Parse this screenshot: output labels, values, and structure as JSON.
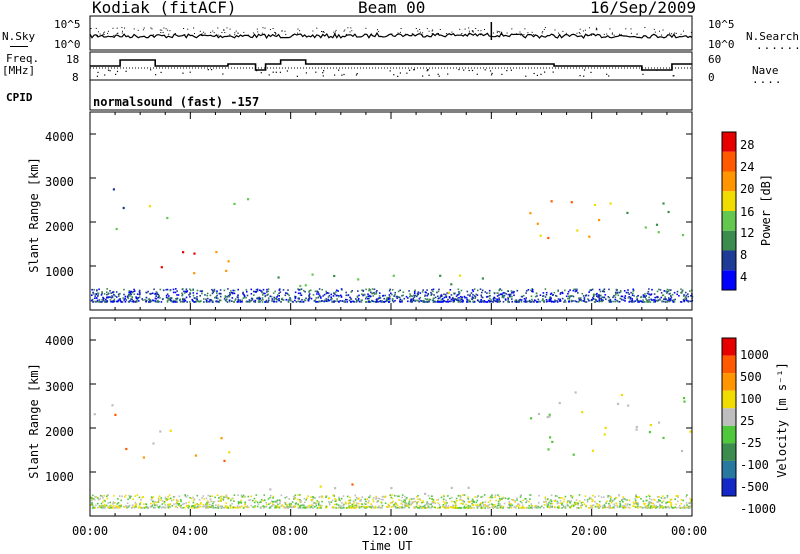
{
  "header": {
    "station": "Kodiak (fitACF)",
    "beam": "Beam 00",
    "date": "16/Sep/2009"
  },
  "summary": {
    "nsky_label": "N.Sky",
    "nsky_ticks": [
      "10^5",
      "10^0"
    ],
    "nsearch_label": "N.Search",
    "nsearch_ticks": [
      "10^5",
      "10^0"
    ],
    "freq_label_line1": "Freq.",
    "freq_label_line2": "[MHz]",
    "freq_ticks": [
      "18",
      "8"
    ],
    "nave_label": "Nave",
    "nave_ticks": [
      "60",
      "0"
    ],
    "cpid_label": "CPID",
    "cpid_value": "normalsound (fast) -157"
  },
  "power_panel": {
    "ylabel": "Slant Range [km]",
    "yticks": [
      "4000",
      "3000",
      "2000",
      "1000"
    ],
    "colorbar_label": "Power [dB]",
    "colorbar_ticks": [
      "28",
      "24",
      "20",
      "16",
      "12",
      "8",
      "4"
    ],
    "colors": [
      "#0000ff",
      "#1e3c96",
      "#3c8c50",
      "#64c850",
      "#f0dc00",
      "#ff9600",
      "#ff5a00",
      "#e60000"
    ]
  },
  "velocity_panel": {
    "ylabel": "Slant Range [km]",
    "yticks": [
      "4000",
      "3000",
      "2000",
      "1000"
    ],
    "colorbar_label": "Velocity [m s⁻¹]",
    "colorbar_ticks": [
      "1000",
      "500",
      "100",
      "25",
      "-25",
      "-100",
      "-500",
      "-1000"
    ],
    "colors": [
      "#1428c8",
      "#2878a0",
      "#3c8c50",
      "#50c83c",
      "#bebebe",
      "#f0dc00",
      "#ff9600",
      "#ff5a00",
      "#e60000"
    ]
  },
  "xaxis": {
    "label": "Time UT",
    "ticks": [
      "00:00",
      "04:00",
      "08:00",
      "12:00",
      "16:00",
      "20:00",
      "00:00"
    ]
  },
  "chart_data": {
    "type": "heatmap",
    "x_unit": "hours UT",
    "xlim": [
      0,
      24
    ],
    "ylim": [
      0,
      4500
    ],
    "power_features": [
      {
        "t0": 0.0,
        "t1": 1.3,
        "r0": 1800,
        "r1": 2800,
        "level": 2
      },
      {
        "t0": 1.2,
        "t1": 5.8,
        "r0": 800,
        "r1": 1400,
        "level": 6
      },
      {
        "t0": 2.0,
        "t1": 3.6,
        "r0": 2100,
        "r1": 2600,
        "level": 3
      },
      {
        "t0": 4.8,
        "t1": 6.4,
        "r0": 2200,
        "r1": 2700,
        "level": 3
      },
      {
        "t0": 6.5,
        "t1": 16.0,
        "r0": 400,
        "r1": 900,
        "level": 3
      },
      {
        "t0": 17.0,
        "t1": 21.0,
        "r0": 1600,
        "r1": 2700,
        "level": 5
      },
      {
        "t0": 21.0,
        "t1": 24.0,
        "r0": 1600,
        "r1": 2500,
        "level": 3
      }
    ],
    "velocity_features": [
      {
        "t0": 0.0,
        "t1": 1.3,
        "r0": 1800,
        "r1": 2800,
        "level": 6
      },
      {
        "t0": 1.2,
        "t1": 5.8,
        "r0": 1200,
        "r1": 2000,
        "level": 6
      },
      {
        "t0": 6.5,
        "t1": 12.0,
        "r0": 600,
        "r1": 900,
        "level": 6
      },
      {
        "t0": 9.0,
        "t1": 16.0,
        "r0": 300,
        "r1": 700,
        "level": 4
      },
      {
        "t0": 17.0,
        "t1": 24.0,
        "r0": 1400,
        "r1": 3000,
        "level": 4
      }
    ]
  }
}
